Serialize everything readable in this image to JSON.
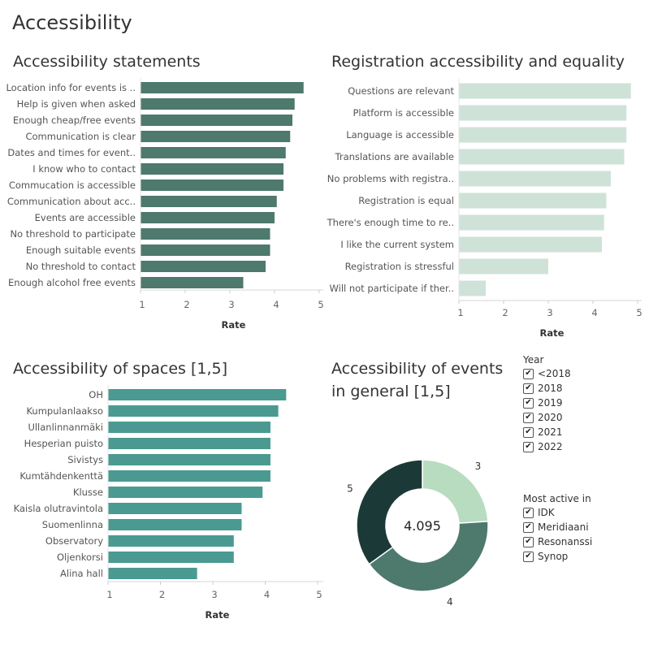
{
  "page": {
    "title": "Accessibility"
  },
  "chart_data": [
    {
      "id": "statements",
      "type": "bar",
      "orientation": "horizontal",
      "title": "Accessibility statements",
      "xlabel": "Rate",
      "xlim": [
        1,
        5
      ],
      "ticks": [
        "1",
        "2",
        "3",
        "4",
        "5"
      ],
      "color": "#4e796d",
      "categories": [
        "Location info for events is ..",
        "Help is given when asked",
        "Enough cheap/free events",
        "Communication is clear",
        "Dates and times for event..",
        "I know who to contact",
        "Commucation is accessible",
        "Communication about acc..",
        "Events are accessible",
        "No threshold to participate",
        "Enough suitable events",
        "No threshold to contact",
        "Enough alcohol free events"
      ],
      "values": [
        4.65,
        4.45,
        4.4,
        4.35,
        4.25,
        4.2,
        4.2,
        4.05,
        4.0,
        3.9,
        3.9,
        3.8,
        3.3
      ]
    },
    {
      "id": "registration",
      "type": "bar",
      "orientation": "horizontal",
      "title": "Registration accessibility and equality",
      "xlabel": "Rate",
      "xlim": [
        1,
        5
      ],
      "ticks": [
        "1",
        "2",
        "3",
        "4",
        "5"
      ],
      "color": "#cfe2d8",
      "categories": [
        "Questions are relevant",
        "Platform is accessible",
        "Language is accessible",
        "Translations are available",
        "No problems with registra..",
        "Registration is equal",
        "There's enough time to re..",
        "I like the current system",
        "Registration is stressful",
        "Will not participate if ther.."
      ],
      "values": [
        4.85,
        4.75,
        4.75,
        4.7,
        4.4,
        4.3,
        4.25,
        4.2,
        3.0,
        1.6
      ]
    },
    {
      "id": "spaces",
      "type": "bar",
      "orientation": "horizontal",
      "title": "Accessibility of spaces [1,5]",
      "xlabel": "Rate",
      "xlim": [
        1,
        5
      ],
      "ticks": [
        "1",
        "2",
        "3",
        "4",
        "5"
      ],
      "color": "#4a9a92",
      "categories": [
        "OH",
        "Kumpulanlaakso",
        "Ullanlinnanmäki",
        "Hesperian puisto",
        "Sivistys",
        "Kumtähdenkenttä",
        "Klusse",
        "Kaisla olutravintola",
        "Suomenlinna",
        "Observatory",
        "Oljenkorsi",
        "Alina hall"
      ],
      "values": [
        4.4,
        4.25,
        4.1,
        4.1,
        4.1,
        4.1,
        3.95,
        3.55,
        3.55,
        3.4,
        3.4,
        2.7
      ]
    },
    {
      "id": "events",
      "type": "pie",
      "donut": true,
      "title": "Accessibility of events in general [1,5]",
      "center_label": "4.095",
      "categories": [
        "3",
        "4",
        "5"
      ],
      "values": [
        24,
        41,
        35
      ],
      "colors": [
        "#b7dcc0",
        "#4e796d",
        "#1b3a37"
      ]
    }
  ],
  "filters": {
    "year": {
      "title": "Year",
      "items": [
        {
          "label": "<2018",
          "checked": true
        },
        {
          "label": "2018",
          "checked": true
        },
        {
          "label": "2019",
          "checked": true
        },
        {
          "label": "2020",
          "checked": true
        },
        {
          "label": "2021",
          "checked": true
        },
        {
          "label": "2022",
          "checked": true
        }
      ]
    },
    "active": {
      "title": "Most active in",
      "items": [
        {
          "label": "IDK",
          "checked": true
        },
        {
          "label": "Meridiaani",
          "checked": true
        },
        {
          "label": "Resonanssi",
          "checked": true
        },
        {
          "label": "Synop",
          "checked": true
        }
      ]
    }
  },
  "icons": {
    "checkmark": "check-icon"
  }
}
